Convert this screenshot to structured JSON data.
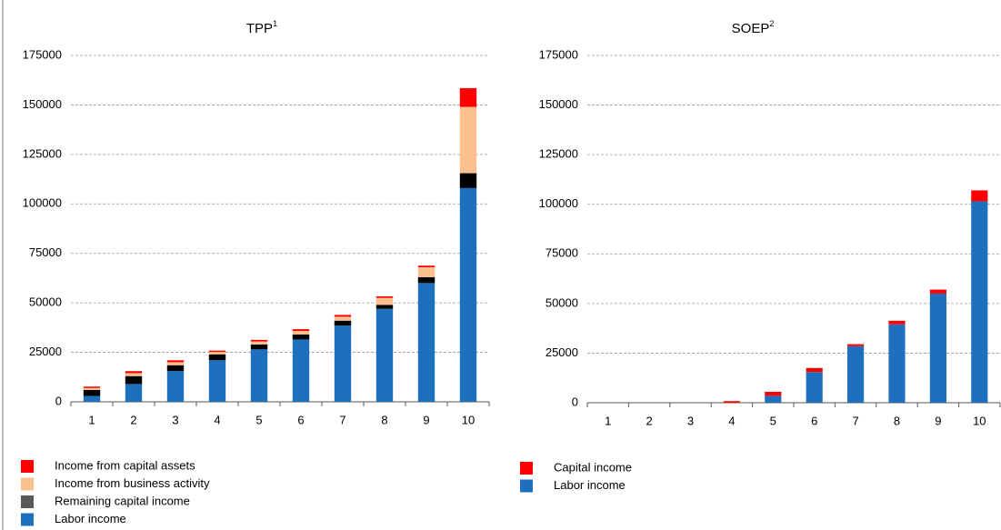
{
  "chart_data": [
    {
      "type": "bar",
      "stacked": true,
      "title": "TPP",
      "title_sup": "1",
      "categories": [
        "1",
        "2",
        "3",
        "4",
        "5",
        "6",
        "7",
        "8",
        "9",
        "10"
      ],
      "series": [
        {
          "name": "Labor income",
          "color": "#1f6fbf",
          "values": [
            3000,
            9000,
            15500,
            21000,
            26500,
            31500,
            38500,
            47000,
            60000,
            108000
          ]
        },
        {
          "name": "Remaining capital income",
          "color": "#000000",
          "legend_color": "#595959",
          "values": [
            3000,
            4000,
            3000,
            3000,
            2500,
            2500,
            2500,
            2000,
            3000,
            7500
          ]
        },
        {
          "name": "Income from business activity",
          "color": "#fac090",
          "values": [
            1000,
            1500,
            1500,
            1200,
            1500,
            1800,
            2000,
            3500,
            5000,
            33500
          ]
        },
        {
          "name": "Income from capital assets",
          "color": "#ff0000",
          "values": [
            700,
            1000,
            1000,
            700,
            800,
            900,
            900,
            800,
            800,
            9500
          ]
        }
      ],
      "ylim": [
        0,
        175000
      ],
      "yticks": [
        0,
        25000,
        50000,
        75000,
        100000,
        125000,
        150000,
        175000
      ],
      "grid": true
    },
    {
      "type": "bar",
      "stacked": true,
      "title": "SOEP",
      "title_sup": "2",
      "categories": [
        "1",
        "2",
        "3",
        "4",
        "5",
        "6",
        "7",
        "8",
        "9",
        "10"
      ],
      "series": [
        {
          "name": "Labor income",
          "color": "#1f6fbf",
          "values": [
            0,
            0,
            0,
            0,
            3500,
            15500,
            28500,
            39500,
            55000,
            101500
          ]
        },
        {
          "name": "Capital income",
          "color": "#ff0000",
          "values": [
            0,
            0,
            0,
            800,
            2000,
            2000,
            1000,
            1800,
            2000,
            5500
          ]
        }
      ],
      "ylim": [
        0,
        175000
      ],
      "yticks": [
        0,
        25000,
        50000,
        75000,
        100000,
        125000,
        150000,
        175000
      ],
      "grid": true
    }
  ]
}
